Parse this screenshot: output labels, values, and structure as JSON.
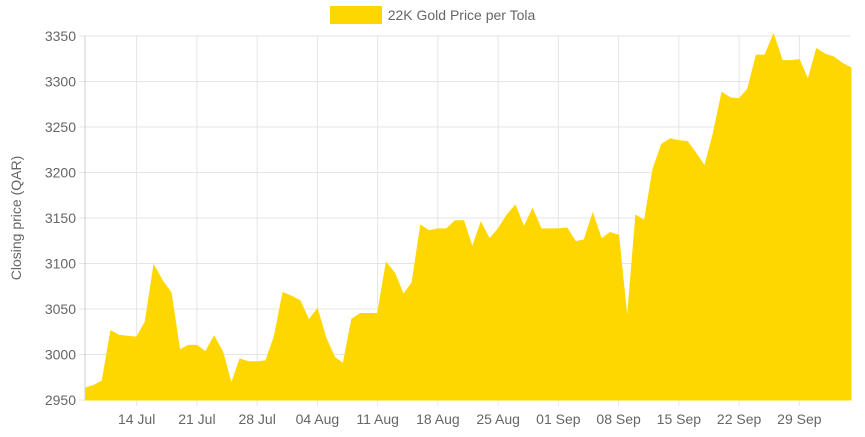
{
  "chart_data": {
    "type": "area",
    "title": "",
    "ylabel": "Closing price (QAR)",
    "xlabel": "",
    "ylim": [
      2950,
      3350
    ],
    "yticks": [
      2950,
      3000,
      3050,
      3100,
      3150,
      3200,
      3250,
      3300,
      3350
    ],
    "grid": true,
    "legend_position": "top",
    "x_start": "08 Jul",
    "x_end": "05 Oct",
    "x_tick_labels": [
      "14 Jul",
      "21 Jul",
      "28 Jul",
      "04 Aug",
      "11 Aug",
      "18 Aug",
      "25 Aug",
      "01 Sep",
      "08 Sep",
      "15 Sep",
      "22 Sep",
      "29 Sep"
    ],
    "series": [
      {
        "name": "22K Gold Price per Tola",
        "color": "#ffd700",
        "x": [
          "08 Jul",
          "09 Jul",
          "10 Jul",
          "11 Jul",
          "12 Jul",
          "13 Jul",
          "14 Jul",
          "15 Jul",
          "16 Jul",
          "17 Jul",
          "18 Jul",
          "19 Jul",
          "20 Jul",
          "21 Jul",
          "22 Jul",
          "23 Jul",
          "24 Jul",
          "25 Jul",
          "26 Jul",
          "27 Jul",
          "28 Jul",
          "29 Jul",
          "30 Jul",
          "31 Jul",
          "01 Aug",
          "02 Aug",
          "03 Aug",
          "04 Aug",
          "05 Aug",
          "06 Aug",
          "07 Aug",
          "08 Aug",
          "09 Aug",
          "10 Aug",
          "11 Aug",
          "12 Aug",
          "13 Aug",
          "14 Aug",
          "15 Aug",
          "16 Aug",
          "17 Aug",
          "18 Aug",
          "19 Aug",
          "20 Aug",
          "21 Aug",
          "22 Aug",
          "23 Aug",
          "24 Aug",
          "25 Aug",
          "26 Aug",
          "27 Aug",
          "28 Aug",
          "29 Aug",
          "30 Aug",
          "31 Aug",
          "01 Sep",
          "02 Sep",
          "03 Sep",
          "04 Sep",
          "05 Sep",
          "06 Sep",
          "07 Sep",
          "08 Sep",
          "09 Sep",
          "10 Sep",
          "11 Sep",
          "12 Sep",
          "13 Sep",
          "14 Sep",
          "15 Sep",
          "16 Sep",
          "17 Sep",
          "18 Sep",
          "19 Sep",
          "20 Sep",
          "21 Sep",
          "22 Sep",
          "23 Sep",
          "24 Sep",
          "25 Sep",
          "26 Sep",
          "27 Sep",
          "28 Sep",
          "29 Sep",
          "30 Sep",
          "01 Oct",
          "02 Oct",
          "03 Oct",
          "04 Oct",
          "05 Oct"
        ],
        "values": [
          2963,
          2966,
          2971,
          3026,
          3021,
          3020,
          3019,
          3036,
          3098,
          3081,
          3068,
          3005,
          3010,
          3010,
          3003,
          3020,
          3003,
          2968,
          2995,
          2992,
          2992,
          2993,
          3020,
          3068,
          3064,
          3059,
          3038,
          3050,
          3018,
          2997,
          2990,
          3039,
          3045,
          3045,
          3045,
          3101,
          3089,
          3066,
          3079,
          3142,
          3136,
          3138,
          3138,
          3147,
          3147,
          3118,
          3145,
          3127,
          3138,
          3153,
          3164,
          3140,
          3160,
          3138,
          3138,
          3138,
          3139,
          3124,
          3126,
          3155,
          3127,
          3134,
          3131,
          3038,
          3153,
          3147,
          3204,
          3231,
          3237,
          3235,
          3234,
          3221,
          3207,
          3243,
          3288,
          3282,
          3281,
          3292,
          3329,
          3329,
          3352,
          3323,
          3323,
          3324,
          3302,
          3336,
          3330,
          3327,
          3320,
          3315
        ]
      }
    ]
  }
}
